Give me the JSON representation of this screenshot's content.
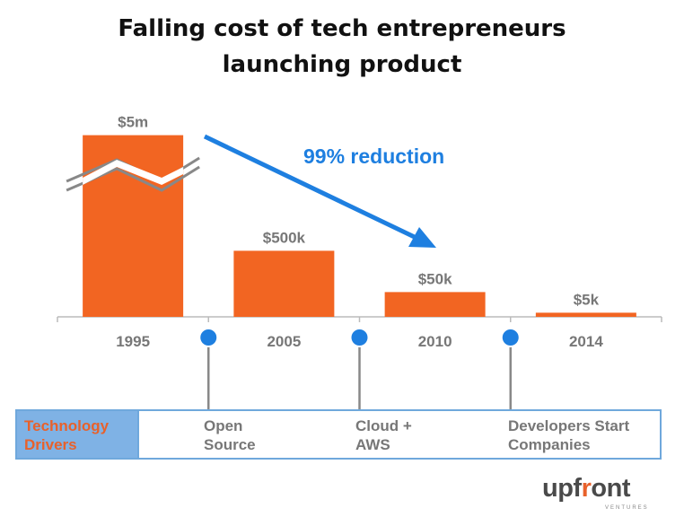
{
  "chart_data": {
    "type": "bar",
    "title_lines": [
      "Falling cost of tech entrepreneurs",
      "launching product"
    ],
    "categories": [
      "1995",
      "2005",
      "2010",
      "2014"
    ],
    "values": [
      5000000,
      500000,
      50000,
      5000
    ],
    "display_heights": [
      0.88,
      0.32,
      0.12,
      0.02
    ],
    "data_labels": [
      "$5m",
      "$500k",
      "$50k",
      "$5k"
    ],
    "axis_break_on_first_bar": true,
    "annotation": "99% reduction",
    "bar_color": "#f26522",
    "arrow_color": "#1e7fe0",
    "grid": false,
    "legend": "none"
  },
  "drivers": {
    "label_lines": [
      "Technology",
      "Drivers"
    ],
    "items": [
      {
        "text": "Open\nSource"
      },
      {
        "text": "Cloud +\nAWS"
      },
      {
        "text": "Developers Start\nCompanies"
      }
    ]
  },
  "logo": {
    "word_main": "upf",
    "word_accent": "r",
    "word_end": "ont",
    "subtitle": "VENTURES"
  }
}
